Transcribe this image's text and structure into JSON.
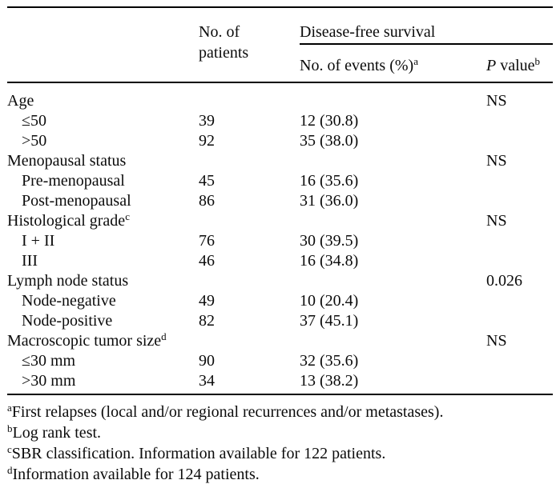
{
  "table": {
    "header": {
      "patients_label": "No. of patients",
      "spanner_label": "Disease-free survival",
      "events_label": "No. of events (%)",
      "events_sup": "a",
      "pvalue_italic": "P",
      "pvalue_rest": " value",
      "pvalue_sup": "b"
    },
    "rows": [
      {
        "label": "Age",
        "sup": "",
        "patients": "",
        "events": "",
        "pvalue": "NS"
      },
      {
        "label": "≤50",
        "sup": "",
        "patients": "39",
        "events": "12 (30.8)",
        "pvalue": ""
      },
      {
        "label": ">50",
        "sup": "",
        "patients": "92",
        "events": "35 (38.0)",
        "pvalue": ""
      },
      {
        "label": "Menopausal status",
        "sup": "",
        "patients": "",
        "events": "",
        "pvalue": "NS"
      },
      {
        "label": "Pre-menopausal",
        "sup": "",
        "patients": "45",
        "events": "16 (35.6)",
        "pvalue": ""
      },
      {
        "label": "Post-menopausal",
        "sup": "",
        "patients": "86",
        "events": "31 (36.0)",
        "pvalue": ""
      },
      {
        "label": "Histological grade",
        "sup": "c",
        "patients": "",
        "events": "",
        "pvalue": "NS"
      },
      {
        "label": "I + II",
        "sup": "",
        "patients": "76",
        "events": "30 (39.5)",
        "pvalue": ""
      },
      {
        "label": "III",
        "sup": "",
        "patients": "46",
        "events": "16 (34.8)",
        "pvalue": ""
      },
      {
        "label": "Lymph node status",
        "sup": "",
        "patients": "",
        "events": "",
        "pvalue": "0.026"
      },
      {
        "label": "Node-negative",
        "sup": "",
        "patients": "49",
        "events": "10 (20.4)",
        "pvalue": ""
      },
      {
        "label": "Node-positive",
        "sup": "",
        "patients": "82",
        "events": "37 (45.1)",
        "pvalue": ""
      },
      {
        "label": "Macroscopic tumor size",
        "sup": "d",
        "patients": "",
        "events": "",
        "pvalue": "NS"
      },
      {
        "label": "≤30 mm",
        "sup": "",
        "patients": "90",
        "events": "32 (35.6)",
        "pvalue": ""
      },
      {
        "label": ">30 mm",
        "sup": "",
        "patients": "34",
        "events": "13 (38.2)",
        "pvalue": ""
      }
    ],
    "footnotes": [
      {
        "sup": "a",
        "text": "First relapses (local and/or regional recurrences and/or metastases)."
      },
      {
        "sup": "b",
        "text": "Log rank test."
      },
      {
        "sup": "c",
        "text": "SBR classification. Information available for 122 patients."
      },
      {
        "sup": "d",
        "text": "Information available for 124 patients."
      }
    ]
  }
}
